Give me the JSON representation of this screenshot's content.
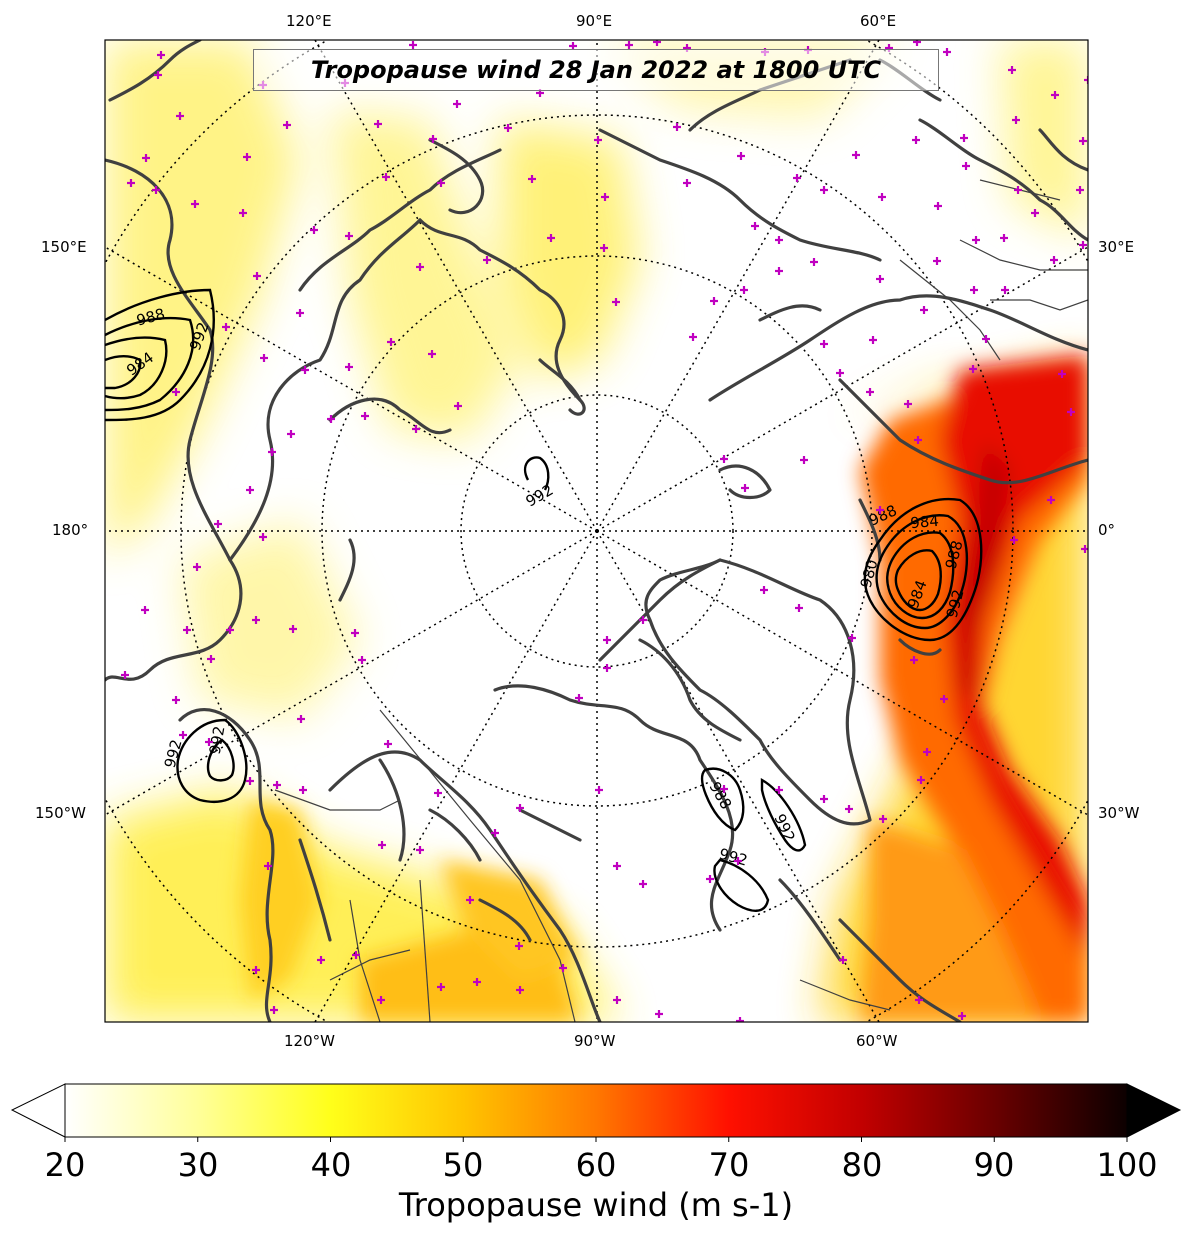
{
  "map": {
    "title": "Tropopause wind 28 Jan 2022 at 1800 UTC",
    "projection": "north-polar-stereographic",
    "longitude_labels": {
      "top": [
        "120°E",
        "90°E",
        "60°E"
      ],
      "bottom": [
        "120°W",
        "90°W",
        "60°W"
      ],
      "left": [
        "150°E",
        "180°",
        "150°W"
      ],
      "right": [
        "30°E",
        "0°",
        "30°W"
      ]
    },
    "contour_field": "mean sea level pressure (hPa)",
    "contour_labels": [
      "988",
      "992",
      "984",
      "992",
      "988",
      "984",
      "980",
      "984",
      "988",
      "992",
      "992",
      "992",
      "988",
      "992",
      "992",
      "992"
    ],
    "marker_symbol": "+",
    "marker_color": "#c000c0",
    "coastline_color": "#404040"
  },
  "colorbar": {
    "label": "Tropopause wind (m s-1)",
    "min": 20,
    "max": 100,
    "ticks": [
      "20",
      "30",
      "40",
      "50",
      "60",
      "70",
      "80",
      "90",
      "100"
    ],
    "extend": "both",
    "colormap": "hot_r"
  }
}
